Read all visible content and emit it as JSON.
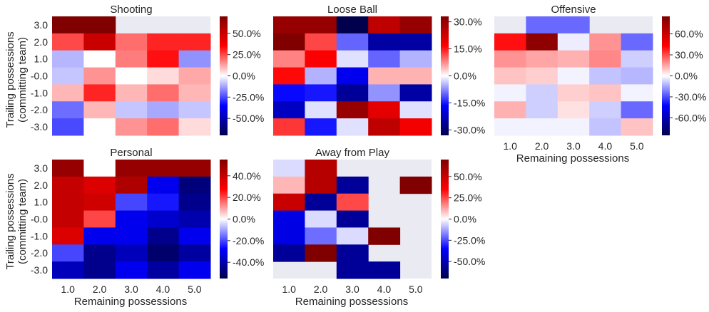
{
  "figure": {
    "ylabel_lines": [
      "Trailing possessions",
      "(committing team)"
    ],
    "xlabel": "Remaining possessions"
  },
  "chart_data": [
    {
      "type": "heatmap",
      "title": "Shooting",
      "x": [
        "1.0",
        "2.0",
        "3.0",
        "4.0",
        "5.0"
      ],
      "y": [
        "3.0",
        "2.0",
        "1.0",
        "-0.0",
        "-1.0",
        "-2.0",
        "-3.0"
      ],
      "values": [
        [
          70,
          70,
          null,
          null,
          null
        ],
        [
          25,
          50,
          20,
          30,
          30
        ],
        [
          -10,
          0,
          18,
          33,
          -15
        ],
        [
          -8,
          15,
          0,
          5,
          12
        ],
        [
          10,
          30,
          10,
          20,
          10
        ],
        [
          -20,
          10,
          -8,
          -12,
          -8
        ],
        [
          -25,
          0,
          15,
          20,
          5
        ]
      ],
      "colorbar": {
        "vmin": -70,
        "vmax": 70,
        "ticks": [
          50,
          25,
          0,
          -25,
          -50
        ],
        "tick_labels": [
          "50.0%",
          "25.0%",
          "0.0%",
          "-25.0%",
          "-50.0%"
        ]
      },
      "show_ylabels": true,
      "show_xlabels": false
    },
    {
      "type": "heatmap",
      "title": "Loose Ball",
      "x": [
        "1.0",
        "2.0",
        "3.0",
        "4.0",
        "5.0"
      ],
      "y": [
        "3.0",
        "2.0",
        "1.0",
        "-0.0",
        "-1.0",
        "-2.0",
        "-3.0"
      ],
      "values": [
        [
          30,
          30,
          -33,
          25,
          30
        ],
        [
          33,
          12,
          -10,
          -25,
          -25
        ],
        [
          8,
          17,
          -2,
          -10,
          -5
        ],
        [
          16,
          -5,
          -18,
          5,
          5
        ],
        [
          -16,
          -15,
          -26,
          -7,
          -25
        ],
        [
          -22,
          -2,
          30,
          20,
          -2
        ],
        [
          13,
          -15,
          -2,
          25,
          18
        ]
      ],
      "colorbar": {
        "vmin": -33,
        "vmax": 33,
        "ticks": [
          30,
          15,
          0,
          -15,
          -30
        ],
        "tick_labels": [
          "30.0%",
          "15.0%",
          "0.0%",
          "-15.0%",
          "-30.0%"
        ]
      },
      "show_ylabels": false,
      "show_xlabels": false
    },
    {
      "type": "heatmap",
      "title": "Offensive",
      "x": [
        "1.0",
        "2.0",
        "3.0",
        "4.0",
        "5.0"
      ],
      "y": [
        "3.0",
        "2.0",
        "1.0",
        "-0.0",
        "-1.0",
        "-2.0",
        "-3.0"
      ],
      "values": [
        [
          null,
          -25,
          -25,
          null,
          null
        ],
        [
          40,
          80,
          -3,
          18,
          -25
        ],
        [
          18,
          15,
          13,
          20,
          -8
        ],
        [
          10,
          8,
          -2,
          -10,
          -12
        ],
        [
          -2,
          -8,
          8,
          10,
          -2
        ],
        [
          13,
          -8,
          5,
          -8,
          -25
        ],
        [
          -2,
          -2,
          -2,
          -10,
          10
        ]
      ],
      "colorbar": {
        "vmin": -85,
        "vmax": 85,
        "ticks": [
          60,
          30,
          0,
          -30,
          -60
        ],
        "tick_labels": [
          "60.0%",
          "30.0%",
          "0.0%",
          "-30.0%",
          "-60.0%"
        ]
      },
      "show_ylabels": false,
      "show_xlabels": true
    },
    {
      "type": "heatmap",
      "title": "Personal",
      "x": [
        "1.0",
        "2.0",
        "3.0",
        "4.0",
        "5.0"
      ],
      "y": [
        "3.0",
        "2.0",
        "1.0",
        "-0.0",
        "-1.0",
        "-2.0",
        "-3.0"
      ],
      "values": [
        [
          50,
          0,
          50,
          50,
          50
        ],
        [
          40,
          35,
          45,
          -30,
          -48
        ],
        [
          40,
          38,
          -20,
          -25,
          -45
        ],
        [
          40,
          20,
          -30,
          -35,
          -40
        ],
        [
          35,
          -30,
          -30,
          -45,
          -30
        ],
        [
          -20,
          -45,
          -38,
          -50,
          -42
        ],
        [
          -38,
          -45,
          -30,
          -42,
          -30
        ]
      ],
      "colorbar": {
        "vmin": -55,
        "vmax": 55,
        "ticks": [
          40,
          20,
          0,
          -20,
          -40
        ],
        "tick_labels": [
          "40.0%",
          "20.0%",
          "0.0%",
          "-20.0%",
          "-40.0%"
        ]
      },
      "show_ylabels": true,
      "show_xlabels": true
    },
    {
      "type": "heatmap",
      "title": "Away from Play",
      "x": [
        "1.0",
        "2.0",
        "3.0",
        "4.0",
        "5.0"
      ],
      "y": [
        "3.0",
        "2.0",
        "1.0",
        "-0.0",
        "-1.0",
        "-2.0",
        "-3.0"
      ],
      "values": [
        [
          -5,
          55,
          null,
          null,
          null
        ],
        [
          10,
          55,
          -55,
          null,
          70
        ],
        [
          50,
          -55,
          25,
          null,
          null
        ],
        [
          -40,
          -5,
          -55,
          null,
          null
        ],
        [
          -40,
          -20,
          -5,
          70,
          null
        ],
        [
          -55,
          70,
          -55,
          null,
          null
        ],
        [
          null,
          null,
          -55,
          -55,
          null
        ]
      ],
      "colorbar": {
        "vmin": -70,
        "vmax": 70,
        "ticks": [
          50,
          25,
          0,
          -25,
          -50
        ],
        "tick_labels": [
          "50.0%",
          "25.0%",
          "0.0%",
          "-25.0%",
          "-50.0%"
        ]
      },
      "show_ylabels": false,
      "show_xlabels": true
    }
  ]
}
